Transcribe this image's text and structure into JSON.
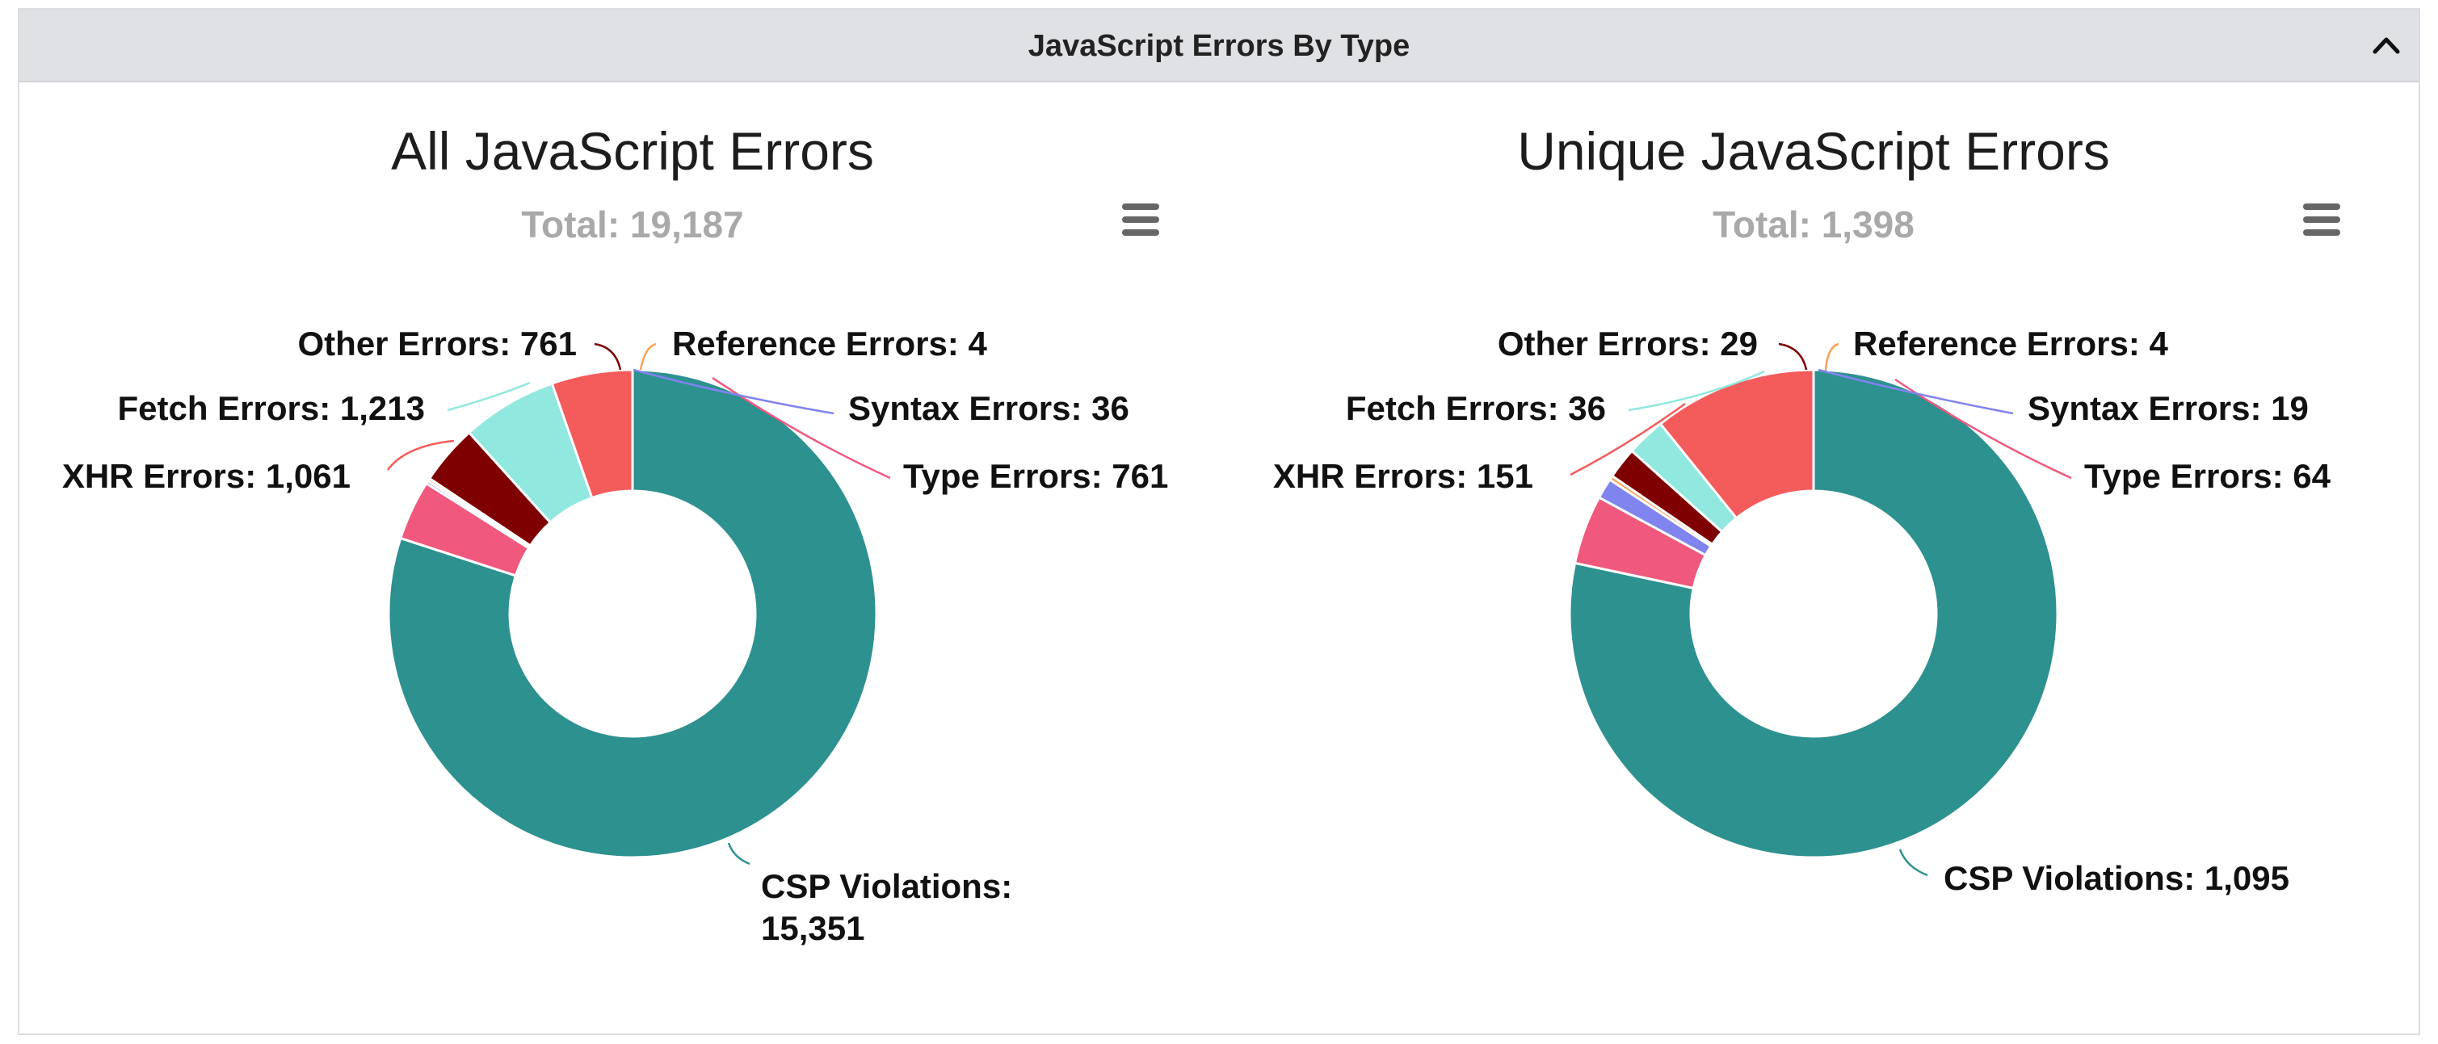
{
  "panel": {
    "title": "JavaScript Errors By Type"
  },
  "colors": {
    "header_bg": "#e0e1e4",
    "csp": "#2d9190",
    "type": "#f0587e",
    "syntax": "#8084ee",
    "reference": "#f7a35c",
    "other": "#7f0000",
    "fetch": "#90e8df",
    "xhr": "#f45b5b"
  },
  "icons": {
    "collapse": "chevron-up-icon",
    "menu": "hamburger-menu-icon"
  },
  "chart_data": [
    {
      "type": "pie",
      "donut": true,
      "title": "All JavaScript Errors",
      "subtitle": "Total: 19,187",
      "slices": [
        {
          "label": "CSP Violations",
          "value": 15351,
          "value_text": "15,351",
          "color": "#2d9190"
        },
        {
          "label": "Type Errors",
          "value": 761,
          "value_text": "761",
          "color": "#f0587e"
        },
        {
          "label": "Syntax Errors",
          "value": 36,
          "value_text": "36",
          "color": "#8084ee"
        },
        {
          "label": "Reference Errors",
          "value": 4,
          "value_text": "4",
          "color": "#f7a35c"
        },
        {
          "label": "Other Errors",
          "value": 761,
          "value_text": "761",
          "color": "#7f0000"
        },
        {
          "label": "Fetch Errors",
          "value": 1213,
          "value_text": "1,213",
          "color": "#90e8df"
        },
        {
          "label": "XHR Errors",
          "value": 1061,
          "value_text": "1,061",
          "color": "#f45b5b"
        }
      ]
    },
    {
      "type": "pie",
      "donut": true,
      "title": "Unique JavaScript Errors",
      "subtitle": "Total: 1,398",
      "slices": [
        {
          "label": "CSP Violations",
          "value": 1095,
          "value_text": "1,095",
          "color": "#2d9190"
        },
        {
          "label": "Type Errors",
          "value": 64,
          "value_text": "64",
          "color": "#f0587e"
        },
        {
          "label": "Syntax Errors",
          "value": 19,
          "value_text": "19",
          "color": "#8084ee"
        },
        {
          "label": "Reference Errors",
          "value": 4,
          "value_text": "4",
          "color": "#f7a35c"
        },
        {
          "label": "Other Errors",
          "value": 29,
          "value_text": "29",
          "color": "#7f0000"
        },
        {
          "label": "Fetch Errors",
          "value": 36,
          "value_text": "36",
          "color": "#90e8df"
        },
        {
          "label": "XHR Errors",
          "value": 151,
          "value_text": "151",
          "color": "#f45b5b"
        }
      ]
    }
  ]
}
